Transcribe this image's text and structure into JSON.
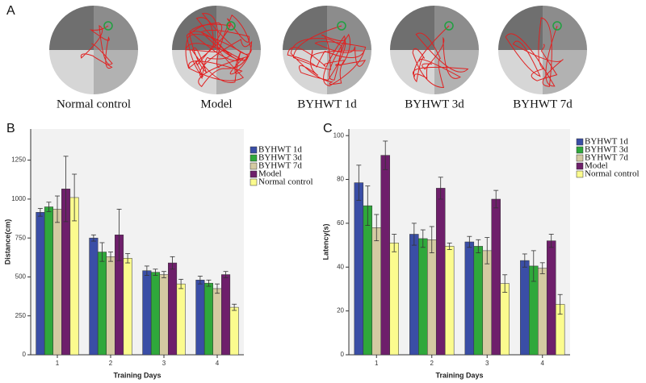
{
  "panel_a": {
    "panel_label": "A",
    "captions": [
      "Normal control",
      "Model",
      "BYHWT 1d",
      "BYHWT   3d",
      "BYHWT 7d"
    ]
  },
  "chart_data": [
    {
      "type": "bar",
      "panel_label": "B",
      "x_label": "Training Days",
      "y_label": "Distance(cm)",
      "categories": [
        "1",
        "2",
        "3",
        "4"
      ],
      "ylim": [
        0,
        1450
      ],
      "yticks": [
        0,
        250,
        500,
        750,
        1000,
        1250
      ],
      "series": [
        {
          "name": "BYHWT 1d",
          "color": "#3a4ea6",
          "values": [
            915,
            750,
            540,
            480
          ],
          "errors": [
            25,
            20,
            30,
            25
          ]
        },
        {
          "name": "BYHWT 3d",
          "color": "#2fa83b",
          "values": [
            950,
            660,
            530,
            460
          ],
          "errors": [
            30,
            60,
            20,
            20
          ]
        },
        {
          "name": "BYHWT 7d",
          "color": "#d4caa2",
          "values": [
            935,
            630,
            515,
            425
          ],
          "errors": [
            85,
            30,
            20,
            30
          ]
        },
        {
          "name": "Model",
          "color": "#6e1f6b",
          "values": [
            1065,
            770,
            590,
            515
          ],
          "errors": [
            210,
            165,
            40,
            20
          ]
        },
        {
          "name": "Normal control",
          "color": "#fbfb8e",
          "values": [
            1010,
            620,
            455,
            305
          ],
          "errors": [
            150,
            30,
            30,
            20
          ]
        }
      ]
    },
    {
      "type": "bar",
      "panel_label": "C",
      "x_label": "Training Days",
      "y_label": "Latency(s)",
      "categories": [
        "1",
        "2",
        "3",
        "4"
      ],
      "ylim": [
        0,
        103
      ],
      "yticks": [
        0,
        20,
        40,
        60,
        80,
        100
      ],
      "series": [
        {
          "name": "BYHWT 1d",
          "color": "#3a4ea6",
          "values": [
            78.5,
            55,
            51.5,
            43
          ],
          "errors": [
            8,
            5,
            2.5,
            3
          ]
        },
        {
          "name": "BYHWT 3d",
          "color": "#2fa83b",
          "values": [
            68,
            53,
            49.5,
            40.5
          ],
          "errors": [
            9,
            4,
            3,
            7
          ]
        },
        {
          "name": "BYHWT 7d",
          "color": "#d4caa2",
          "values": [
            58,
            52.5,
            47.5,
            39.5
          ],
          "errors": [
            6,
            6,
            6,
            2.5
          ]
        },
        {
          "name": "Model",
          "color": "#6e1f6b",
          "values": [
            91,
            76,
            71,
            52
          ],
          "errors": [
            6.5,
            5,
            4,
            3
          ]
        },
        {
          "name": "Normal control",
          "color": "#fbfb8e",
          "values": [
            51,
            49.5,
            32.5,
            23
          ],
          "errors": [
            4,
            1.5,
            4,
            4.5
          ]
        }
      ]
    }
  ]
}
